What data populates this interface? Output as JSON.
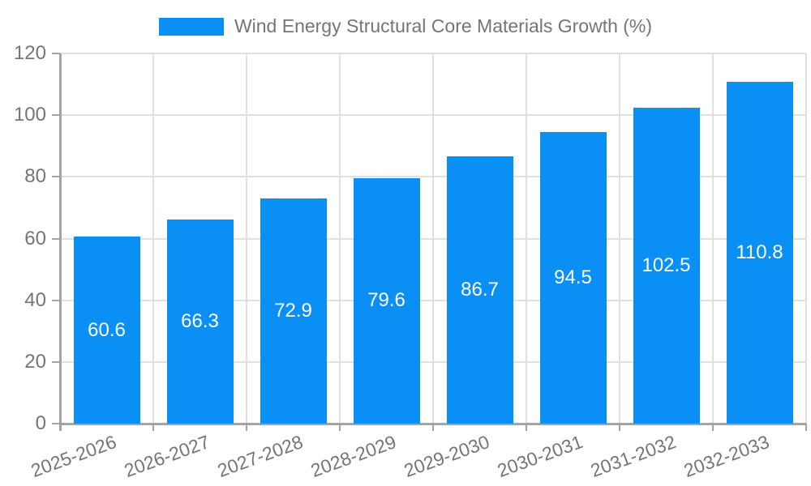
{
  "legend": {
    "label": "Wind Energy Structural Core Materials Growth (%)"
  },
  "chart_data": {
    "type": "bar",
    "title": "Wind Energy Structural Core Materials Growth (%)",
    "categories": [
      "2025-2026",
      "2026-2027",
      "2027-2028",
      "2028-2029",
      "2029-2030",
      "2030-2031",
      "2031-2032",
      "2032-2033"
    ],
    "values": [
      60.6,
      66.3,
      72.9,
      79.6,
      86.7,
      94.5,
      102.5,
      110.8
    ],
    "value_labels": [
      "60.6",
      "66.3",
      "72.9",
      "79.6",
      "86.7",
      "94.5",
      "102.5",
      "110.8"
    ],
    "xlabel": "",
    "ylabel": "",
    "ylim": [
      0,
      120
    ],
    "yticks": [
      0,
      20,
      40,
      60,
      80,
      100,
      120
    ],
    "grid": true,
    "legend_position": "top-center",
    "x_label_rotation_deg": 20
  },
  "colors": {
    "bar": "#0a8ff5",
    "grid": "#e0e0e0",
    "axis": "#a3a3a3",
    "tick_text": "#757575",
    "title_text": "#757575",
    "value_text": "#ffffff",
    "background": "#ffffff"
  }
}
